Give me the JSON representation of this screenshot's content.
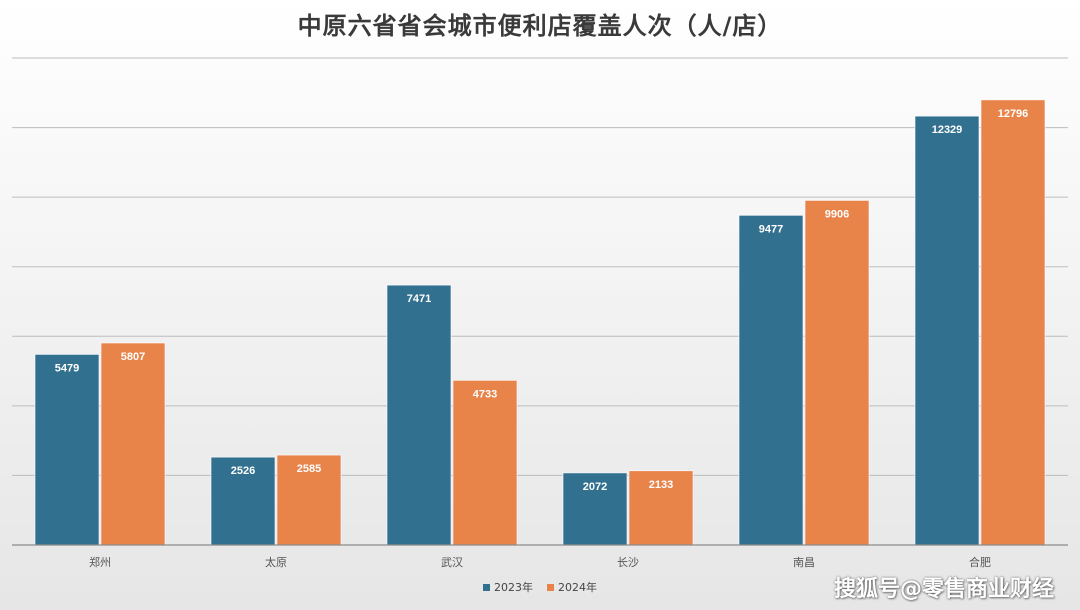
{
  "chart_data": {
    "type": "bar",
    "title": "中原六省省会城市便利店覆盖人次（人/店）",
    "categories": [
      "郑州",
      "太原",
      "武汉",
      "长沙",
      "南昌",
      "合肥"
    ],
    "series": [
      {
        "name": "2023年",
        "color": "#32708f",
        "values": [
          5479,
          2526,
          7471,
          2072,
          9477,
          12329
        ]
      },
      {
        "name": "2024年",
        "color": "#e8834a",
        "values": [
          5807,
          2585,
          4733,
          2133,
          9906,
          12796
        ]
      }
    ],
    "ylim": [
      0,
      14000
    ],
    "grid": true,
    "legend_position": "bottom"
  },
  "watermark": "搜狐号@零售商业财经"
}
